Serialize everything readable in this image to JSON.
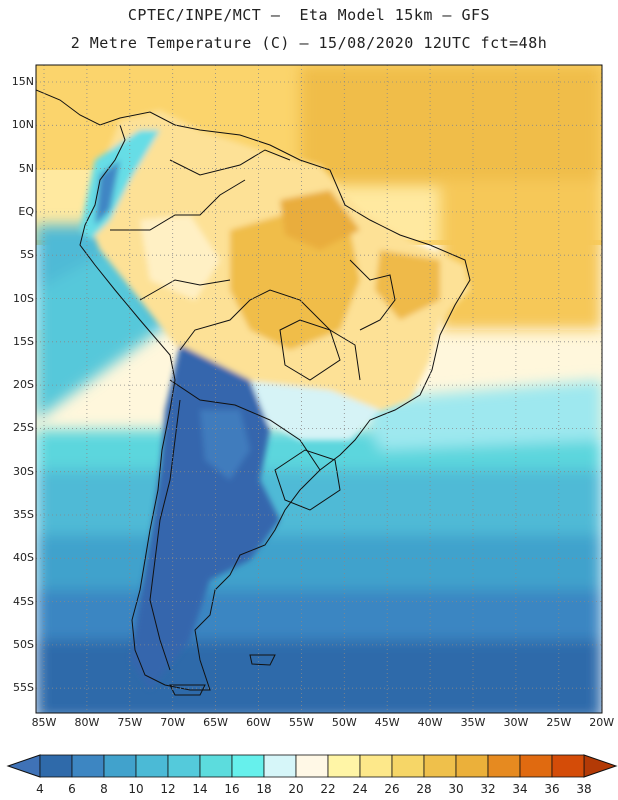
{
  "header": {
    "line1": "CPTEC/INPE/MCT –  Eta Model 15km – GFS",
    "line2": "2 Metre Temperature (C) – 15/08/2020 12UTC fct=48h"
  },
  "map": {
    "variable": "2 Metre Temperature",
    "units": "C",
    "lat_labels": [
      "15N",
      "10N",
      "5N",
      "EQ",
      "5S",
      "10S",
      "15S",
      "20S",
      "25S",
      "30S",
      "35S",
      "40S",
      "45S",
      "50S",
      "55S"
    ],
    "lon_labels": [
      "85W",
      "80W",
      "75W",
      "70W",
      "65W",
      "60W",
      "55W",
      "50W",
      "45W",
      "40W",
      "35W",
      "30W",
      "25W",
      "20W"
    ]
  },
  "colorbar": {
    "ticks": [
      "4",
      "6",
      "8",
      "10",
      "12",
      "14",
      "16",
      "18",
      "20",
      "22",
      "24",
      "26",
      "28",
      "30",
      "32",
      "34",
      "36",
      "38"
    ],
    "colors": [
      "#3f72b7",
      "#2f6aaa",
      "#3d86c2",
      "#41a2cc",
      "#4bbad6",
      "#54cadb",
      "#5cdcdd",
      "#66f0ec",
      "#d6f6f9",
      "#fff8e6",
      "#fff5a6",
      "#fde88a",
      "#f6d667",
      "#efc04b",
      "#ebb03a",
      "#e68a20",
      "#e06a10",
      "#d44c08",
      "#b33a06"
    ]
  },
  "palette": {
    "deep_blue": "#2f5ea3",
    "blue": "#3b7dbd",
    "light_blue": "#4fbad6",
    "cyan": "#5cdcdd",
    "pale_cyan": "#9ee8ef",
    "cream": "#fff7dc",
    "pale_yellow": "#ffe9a0",
    "yellow": "#fbd46c",
    "orange": "#f0bd4a",
    "dark_orange": "#e8a93a"
  }
}
